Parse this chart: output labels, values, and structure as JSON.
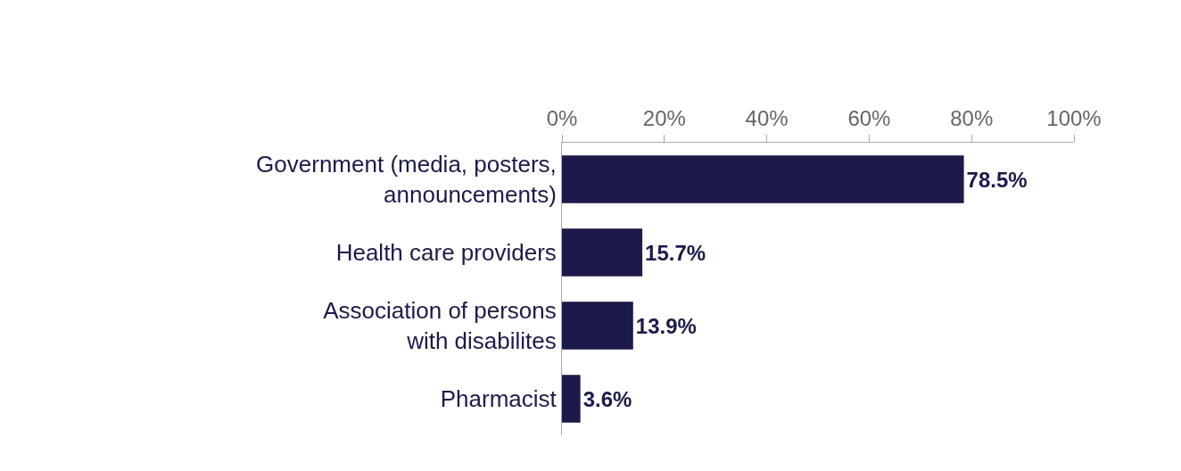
{
  "chart_data": {
    "type": "bar",
    "orientation": "horizontal",
    "categories": [
      "Government (media, posters,\nannouncements)",
      "Health care providers",
      "Association of persons\nwith disabilites",
      "Pharmacist"
    ],
    "values": [
      78.5,
      15.7,
      13.9,
      3.6
    ],
    "value_labels": [
      "78.5%",
      "15.7%",
      "13.9%",
      "3.6%"
    ],
    "color": "#1b1a4a",
    "xlim": [
      0,
      100
    ],
    "xticks": [
      {
        "value": 0,
        "label": "0%"
      },
      {
        "value": 20,
        "label": "20%"
      },
      {
        "value": 40,
        "label": "40%"
      },
      {
        "value": 60,
        "label": "60%"
      },
      {
        "value": 80,
        "label": "80%"
      },
      {
        "value": 100,
        "label": "100%"
      }
    ],
    "legend": false
  }
}
